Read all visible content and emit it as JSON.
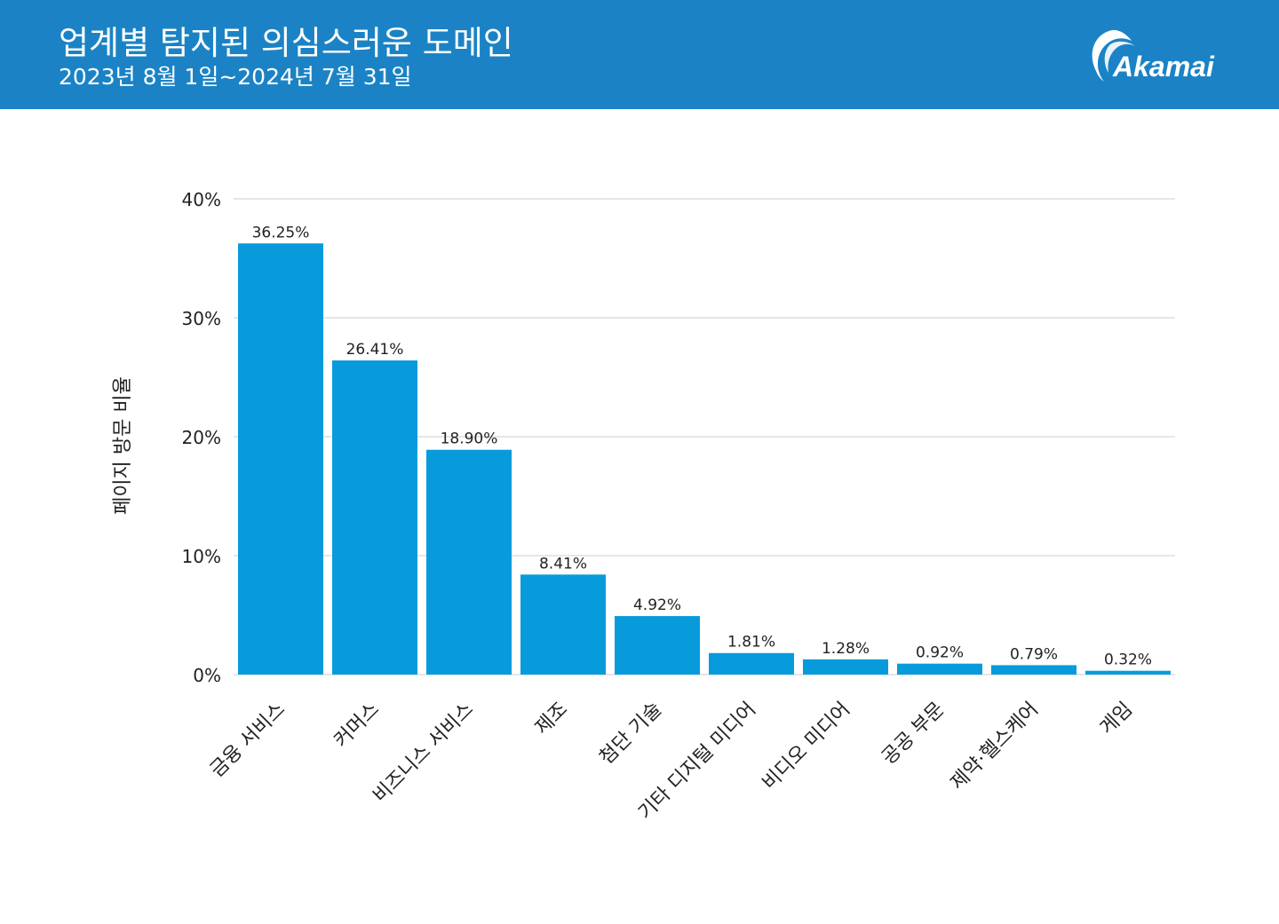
{
  "header": {
    "title": "업계별 탐지된 의심스러운 도메인",
    "subtitle": "2023년 8월 1일~2024년 7월 31일",
    "brand": "Akamai",
    "background_color": "#1b83c5"
  },
  "chart_data": {
    "type": "bar",
    "title": "업계별 탐지된 의심스러운 도메인",
    "xlabel": "",
    "ylabel": "페이지 방문 비율",
    "categories": [
      "금융 서비스",
      "커머스",
      "비즈니스 서비스",
      "제조",
      "첨단 기술",
      "기타 디지털 미디어",
      "비디오 미디어",
      "공공 부문",
      "제약·헬스케어",
      "게임"
    ],
    "values": [
      36.25,
      26.41,
      18.9,
      8.41,
      4.92,
      1.81,
      1.28,
      0.92,
      0.79,
      0.32
    ],
    "value_labels": [
      "36.25%",
      "26.41%",
      "18.90%",
      "8.41%",
      "4.92%",
      "1.81%",
      "1.28%",
      "0.92%",
      "0.79%",
      "0.32%"
    ],
    "ylim": [
      0,
      40
    ],
    "yticks": [
      0,
      10,
      20,
      30,
      40
    ],
    "ytick_labels": [
      "0%",
      "10%",
      "20%",
      "30%",
      "40%"
    ],
    "grid": true,
    "bar_color": "#079bdc"
  }
}
